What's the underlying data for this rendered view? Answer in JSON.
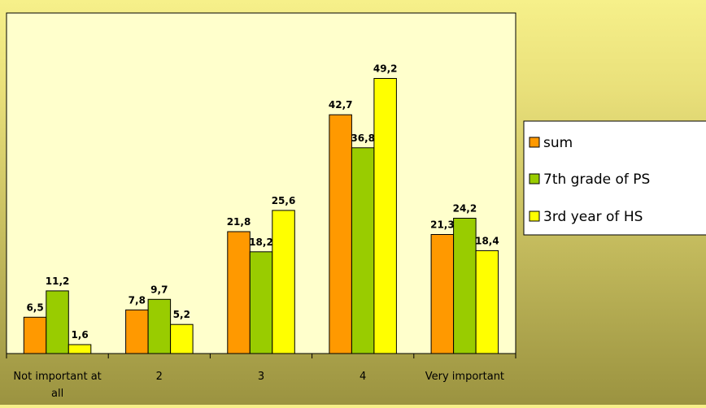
{
  "chart_data": {
    "type": "bar",
    "categories": [
      "Not important at all",
      "2",
      "3",
      "4",
      "Very important"
    ],
    "category_label_lines": [
      [
        "Not important at",
        "all"
      ],
      [
        "2"
      ],
      [
        "3"
      ],
      [
        "4"
      ],
      [
        "Very important"
      ]
    ],
    "series": [
      {
        "name": "sum",
        "values": [
          6.5,
          7.8,
          21.8,
          42.7,
          21.3
        ],
        "labels": [
          "6,5",
          "7,8",
          "21,8",
          "42,7",
          "21,3"
        ],
        "color": "#ff9900"
      },
      {
        "name": "7th grade of PS",
        "values": [
          11.2,
          9.7,
          18.2,
          36.8,
          24.2
        ],
        "labels": [
          "11,2",
          "9,7",
          "18,2",
          "36,8",
          "24,2"
        ],
        "color": "#99cc00"
      },
      {
        "name": "3rd year of HS",
        "values": [
          1.6,
          5.2,
          25.6,
          49.2,
          18.4
        ],
        "labels": [
          "1,6",
          "5,2",
          "25,6",
          "49,2",
          "18,4"
        ],
        "color": "#ffff00"
      }
    ],
    "ylim": [
      0,
      55
    ],
    "grid": false,
    "legend_position": "right",
    "plot_background": "#ffffcc"
  }
}
